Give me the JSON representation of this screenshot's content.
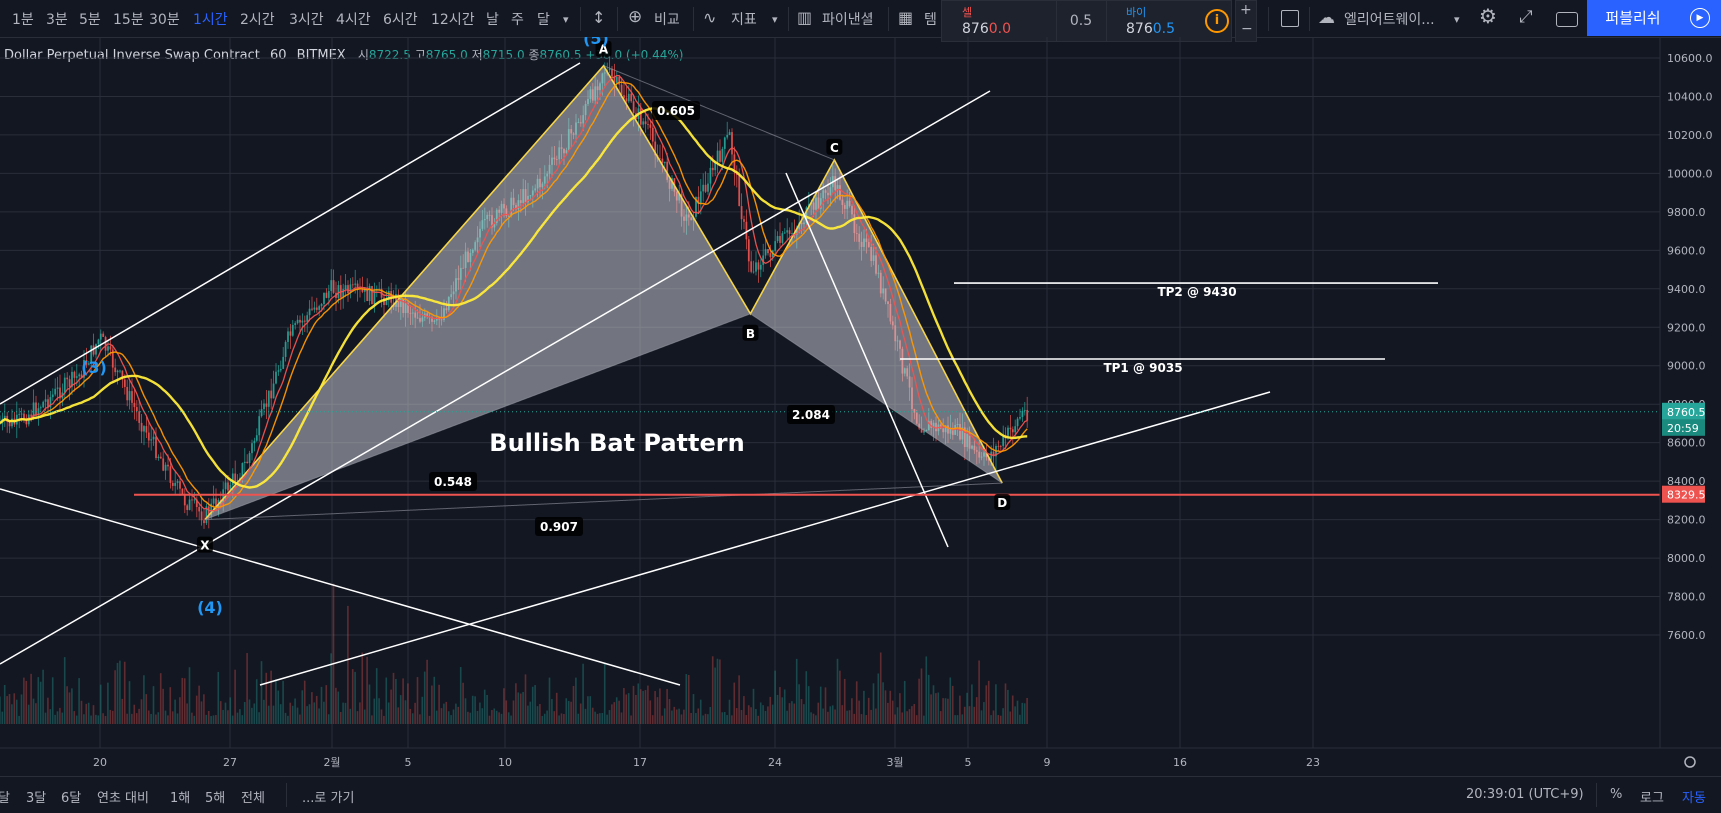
{
  "toolbar": {
    "timeframes": [
      "1분",
      "3분",
      "5분",
      "15분",
      "30분",
      "1시간",
      "2시간",
      "3시간",
      "4시간",
      "6시간",
      "12시간",
      "날",
      "주",
      "달"
    ],
    "active_timeframe": "1시간",
    "compare_label": "비교",
    "indicators_label": "지표",
    "financials_label": "파이낸셜",
    "templates_label": "템",
    "alert_label": "엘리어트웨이...",
    "publish_label": "퍼블리쉬"
  },
  "trade": {
    "sell_label": "셀",
    "sell_price_main": "876",
    "sell_price_tail": "0.0",
    "spread": "0.5",
    "buy_label": "바이",
    "buy_price_main": "876",
    "buy_price_tail": "0.5"
  },
  "legend": {
    "symbol": "Dollar Perpetual Inverse Swap Contract",
    "interval": "60",
    "exchange": "BITMEX",
    "open_label": "시",
    "open": "8722.5",
    "high_label": "고",
    "high": "8765.0",
    "low_label": "저",
    "low": "8715.0",
    "close_label": "종",
    "close": "8760.5",
    "change": "+38.0 (+0.44%)"
  },
  "bottom_bar": {
    "ranges": [
      "달",
      "3달",
      "6달",
      "연초 대비",
      "1해",
      "5해",
      "전체"
    ],
    "goto_label": "...로 가기",
    "time": "20:39:01 (UTC+9)",
    "percent_label": "%",
    "log_label": "로그",
    "auto_label": "자동"
  },
  "colors": {
    "background": "#131722",
    "price_label": "#26a69a",
    "stop_line": "#ef5350",
    "pattern_fill": "#d1d4dc",
    "ma_yellow": "#ffeb3b",
    "ma_orange": "#ff9800",
    "ma_red": "#ef5350",
    "wave_label": "#2196f3",
    "accent": "#2962ff"
  },
  "chart_data": {
    "type": "line",
    "title": "Bullish Bat Pattern",
    "y_axis": {
      "min": 7550,
      "max": 10650,
      "ticks": [
        7600,
        7800,
        8000,
        8200,
        8400,
        8600,
        8800,
        9000,
        9200,
        9400,
        9600,
        9800,
        10000,
        10200,
        10400,
        10600
      ]
    },
    "x_axis": {
      "labels": [
        "20",
        "27",
        "2월",
        "5",
        "10",
        "17",
        "24",
        "3월",
        "5",
        "9",
        "16",
        "23"
      ]
    },
    "current_price": "8760.5",
    "countdown": "20:59",
    "harmonic_points": [
      {
        "label": "X",
        "x": "Jan 25",
        "y": 8200
      },
      {
        "label": "A",
        "x": "Feb 13",
        "y": 10560
      },
      {
        "label": "B",
        "x": "Feb 20",
        "y": 9270
      },
      {
        "label": "C",
        "x": "Feb 24",
        "y": 10070
      },
      {
        "label": "D",
        "x": "Mar 3",
        "y": 8390
      }
    ],
    "ratios": [
      {
        "label": "0.548",
        "between": "X-B"
      },
      {
        "label": "0.605",
        "between": "A-C"
      },
      {
        "label": "2.084",
        "between": "B-D"
      },
      {
        "label": "0.907",
        "between": "X-D"
      }
    ],
    "levels": [
      {
        "name": "TP1",
        "label": "TP1 @ 9035",
        "value": 9035
      },
      {
        "name": "TP2",
        "label": "TP2 @ 9430",
        "value": 9430
      },
      {
        "name": "stop",
        "label": "8329.5",
        "value": 8329.5
      }
    ],
    "wave_labels": [
      "(3)",
      "(5)",
      "(4)"
    ],
    "price_series_approx": [
      {
        "x": "Jan 16",
        "y": 8700
      },
      {
        "x": "Jan 19",
        "y": 8950
      },
      {
        "x": "Jan 20",
        "y": 9150
      },
      {
        "x": "Jan 22",
        "y": 8700
      },
      {
        "x": "Jan 24",
        "y": 8300
      },
      {
        "x": "Jan 25",
        "y": 8220
      },
      {
        "x": "Jan 27",
        "y": 8500
      },
      {
        "x": "Jan 29",
        "y": 9150
      },
      {
        "x": "Jan 31",
        "y": 9400
      },
      {
        "x": "Feb 3",
        "y": 9350
      },
      {
        "x": "Feb 5",
        "y": 9200
      },
      {
        "x": "Feb 7",
        "y": 9700
      },
      {
        "x": "Feb 10",
        "y": 9950
      },
      {
        "x": "Feb 12",
        "y": 10300
      },
      {
        "x": "Feb 13",
        "y": 10550
      },
      {
        "x": "Feb 15",
        "y": 10250
      },
      {
        "x": "Feb 17",
        "y": 9750
      },
      {
        "x": "Feb 19",
        "y": 10200
      },
      {
        "x": "Feb 20",
        "y": 9500
      },
      {
        "x": "Feb 22",
        "y": 9700
      },
      {
        "x": "Feb 24",
        "y": 9950
      },
      {
        "x": "Feb 26",
        "y": 9500
      },
      {
        "x": "Feb 28",
        "y": 8700
      },
      {
        "x": "Mar 1",
        "y": 8650
      },
      {
        "x": "Mar 2",
        "y": 8500
      },
      {
        "x": "Mar 3",
        "y": 8600
      },
      {
        "x": "Mar 4",
        "y": 8760
      }
    ]
  }
}
